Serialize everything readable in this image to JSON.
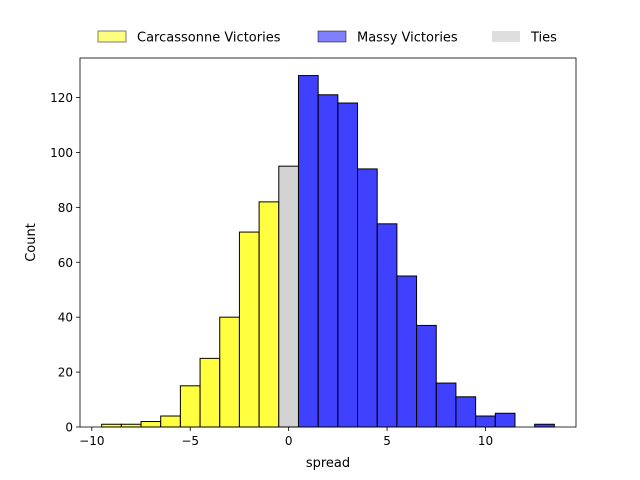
{
  "chart_data": {
    "type": "bar",
    "xlabel": "spread",
    "ylabel": "Count",
    "xlim": [
      -10.6,
      14.6
    ],
    "ylim": [
      0,
      134.4
    ],
    "grid": false,
    "legend_position": "top-center, outside plot area",
    "x_ticks": [
      "−10",
      "−5",
      "0",
      "5",
      "10"
    ],
    "y_ticks": [
      "0",
      "20",
      "40",
      "60",
      "80",
      "100",
      "120"
    ],
    "bin_width": 1,
    "series": [
      {
        "name": "Carcassonne Victories",
        "color": "#ffff00",
        "bins": [
          {
            "start": -9.5,
            "count": 1
          },
          {
            "start": -8.5,
            "count": 1
          },
          {
            "start": -7.5,
            "count": 2
          },
          {
            "start": -6.5,
            "count": 4
          },
          {
            "start": -5.5,
            "count": 15
          },
          {
            "start": -4.5,
            "count": 25
          },
          {
            "start": -3.5,
            "count": 40
          },
          {
            "start": -2.5,
            "count": 71
          },
          {
            "start": -1.5,
            "count": 82
          }
        ]
      },
      {
        "name": "Massy Victories",
        "color": "#0000ff",
        "bins": [
          {
            "start": 0.5,
            "count": 128
          },
          {
            "start": 1.5,
            "count": 121
          },
          {
            "start": 2.5,
            "count": 118
          },
          {
            "start": 3.5,
            "count": 94
          },
          {
            "start": 4.5,
            "count": 74
          },
          {
            "start": 5.5,
            "count": 55
          },
          {
            "start": 6.5,
            "count": 37
          },
          {
            "start": 7.5,
            "count": 16
          },
          {
            "start": 8.5,
            "count": 11
          },
          {
            "start": 9.5,
            "count": 4
          },
          {
            "start": 10.5,
            "count": 5
          },
          {
            "start": 12.5,
            "count": 1
          }
        ]
      },
      {
        "name": "Ties",
        "color": "#d3d3d3",
        "bins": [
          {
            "start": -0.5,
            "count": 95
          }
        ]
      }
    ]
  }
}
